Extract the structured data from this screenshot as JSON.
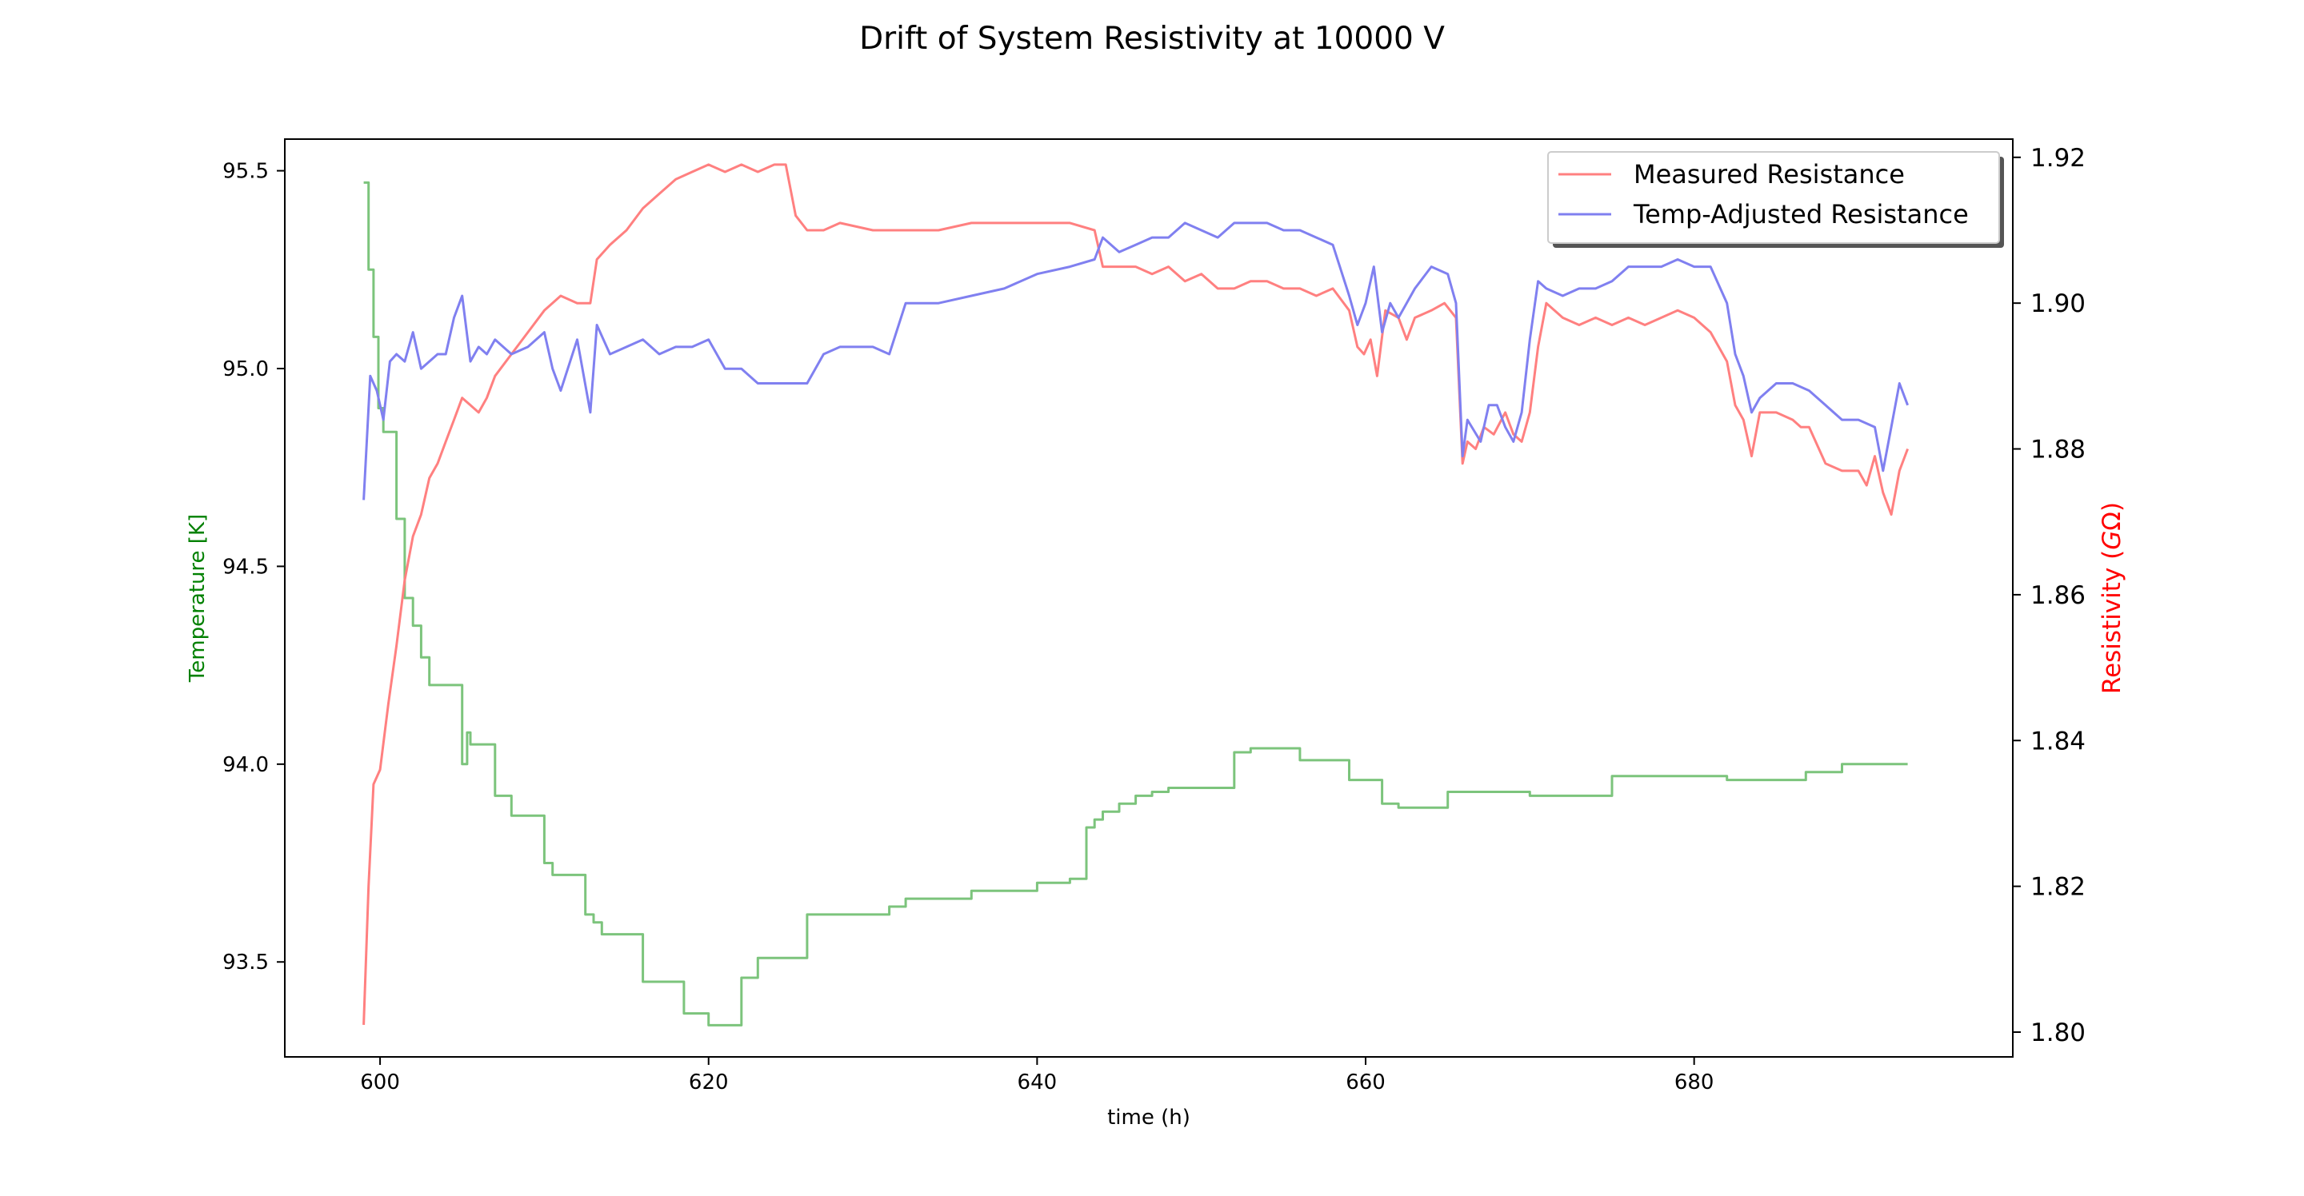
{
  "chart_data": {
    "type": "line",
    "title": "Drift of System Resistivity at 10000 V",
    "xlabel": "time (h)",
    "ylabel_left": "Temperature [K]",
    "ylabel_right": "Resistivity (GΩ)",
    "ylabel_right_prefix": "Resistivity (",
    "ylabel_right_var": "G",
    "ylabel_right_suffix": "Ω)",
    "xlim": [
      594.2,
      699.4
    ],
    "ylim_left": [
      93.26,
      95.58
    ],
    "ylim_right": [
      1.7966,
      1.9225
    ],
    "x_ticks": [
      600,
      620,
      640,
      660,
      680
    ],
    "y_ticks_left": [
      93.5,
      94.0,
      94.5,
      95.0,
      95.5
    ],
    "y_ticks_right": [
      1.8,
      1.82,
      1.84,
      1.86,
      1.88,
      1.9,
      1.92
    ],
    "grid": false,
    "legend_position": "top-right",
    "colors": {
      "temperature": "#7cc47c",
      "measured": "#ff8080",
      "adjusted": "#8080f0",
      "left_label": "#008000",
      "right_label": "#ff0000"
    },
    "legend": [
      {
        "name": "Measured Resistance",
        "color": "#ff8080"
      },
      {
        "name": "Temp-Adjusted Resistance",
        "color": "#8080f0"
      }
    ],
    "series": [
      {
        "name": "Measured Resistance",
        "axis": "right",
        "x": [
          599.0,
          599.3,
          599.6,
          600.0,
          600.5,
          601.0,
          601.5,
          602.0,
          602.5,
          603.0,
          603.5,
          604.0,
          604.5,
          605.0,
          605.5,
          606.0,
          606.5,
          607.0,
          608.0,
          609.0,
          610.0,
          611.0,
          612.0,
          612.8,
          613.2,
          614.0,
          615.0,
          616.0,
          617.0,
          618.0,
          619.0,
          620.0,
          621.0,
          622.0,
          623.0,
          624.0,
          624.7,
          625.3,
          626.0,
          627.0,
          628.0,
          630.0,
          632.0,
          634.0,
          636.0,
          638.0,
          640.0,
          642.0,
          643.5,
          644.0,
          645.0,
          646.0,
          647.0,
          648.0,
          649.0,
          650.0,
          651.0,
          652.0,
          653.0,
          654.0,
          655.0,
          656.0,
          657.0,
          658.0,
          659.0,
          659.5,
          659.9,
          660.3,
          660.7,
          661.2,
          662.0,
          662.5,
          663.0,
          664.0,
          664.8,
          665.5,
          665.9,
          666.2,
          666.7,
          667.2,
          667.8,
          668.5,
          669.0,
          669.5,
          670.0,
          670.5,
          671.0,
          672.0,
          673.0,
          674.0,
          675.0,
          676.0,
          677.0,
          678.0,
          679.0,
          680.0,
          681.0,
          682.0,
          682.5,
          683.0,
          683.5,
          684.0,
          685.0,
          686.0,
          686.5,
          687.0,
          688.0,
          689.0,
          690.0,
          690.5,
          691.0,
          691.5,
          692.0,
          692.5,
          693.0
        ],
        "y": [
          1.801,
          1.82,
          1.834,
          1.836,
          1.845,
          1.853,
          1.862,
          1.868,
          1.871,
          1.876,
          1.878,
          1.881,
          1.884,
          1.887,
          1.886,
          1.885,
          1.887,
          1.89,
          1.893,
          1.896,
          1.899,
          1.901,
          1.9,
          1.9,
          1.906,
          1.908,
          1.91,
          1.913,
          1.915,
          1.917,
          1.918,
          1.919,
          1.918,
          1.919,
          1.918,
          1.919,
          1.919,
          1.912,
          1.91,
          1.91,
          1.911,
          1.91,
          1.91,
          1.91,
          1.911,
          1.911,
          1.911,
          1.911,
          1.91,
          1.905,
          1.905,
          1.905,
          1.904,
          1.905,
          1.903,
          1.904,
          1.902,
          1.902,
          1.903,
          1.903,
          1.902,
          1.902,
          1.901,
          1.902,
          1.899,
          1.894,
          1.893,
          1.895,
          1.89,
          1.899,
          1.898,
          1.895,
          1.898,
          1.899,
          1.9,
          1.898,
          1.878,
          1.881,
          1.88,
          1.883,
          1.882,
          1.885,
          1.882,
          1.881,
          1.885,
          1.894,
          1.9,
          1.898,
          1.897,
          1.898,
          1.897,
          1.898,
          1.897,
          1.898,
          1.899,
          1.898,
          1.896,
          1.892,
          1.886,
          1.884,
          1.879,
          1.885,
          1.885,
          1.884,
          1.883,
          1.883,
          1.878,
          1.877,
          1.877,
          1.875,
          1.879,
          1.874,
          1.871,
          1.877,
          1.88
        ]
      },
      {
        "name": "Temp-Adjusted Resistance",
        "axis": "right",
        "x": [
          599.0,
          599.4,
          599.8,
          600.2,
          600.6,
          601.0,
          601.5,
          602.0,
          602.5,
          603.0,
          603.5,
          604.0,
          604.5,
          605.0,
          605.5,
          606.0,
          606.5,
          607.0,
          608.0,
          609.0,
          610.0,
          610.5,
          611.0,
          612.0,
          612.8,
          613.2,
          614.0,
          615.0,
          616.0,
          617.0,
          618.0,
          619.0,
          620.0,
          621.0,
          622.0,
          623.0,
          624.0,
          625.0,
          626.0,
          627.0,
          628.0,
          630.0,
          631.0,
          632.0,
          634.0,
          636.0,
          638.0,
          640.0,
          642.0,
          643.5,
          644.0,
          645.0,
          646.0,
          647.0,
          648.0,
          649.0,
          650.0,
          651.0,
          652.0,
          653.0,
          654.0,
          655.0,
          656.0,
          657.0,
          658.0,
          659.0,
          659.5,
          660.0,
          660.5,
          661.0,
          661.5,
          662.0,
          663.0,
          664.0,
          665.0,
          665.5,
          665.9,
          666.2,
          667.0,
          667.5,
          668.0,
          668.5,
          669.0,
          669.5,
          670.0,
          670.5,
          671.0,
          672.0,
          673.0,
          674.0,
          675.0,
          676.0,
          677.0,
          678.0,
          679.0,
          680.0,
          681.0,
          682.0,
          682.5,
          683.0,
          683.5,
          684.0,
          685.0,
          686.0,
          687.0,
          688.0,
          689.0,
          690.0,
          691.0,
          691.5,
          692.0,
          692.5,
          693.0
        ],
        "y": [
          1.873,
          1.89,
          1.888,
          1.884,
          1.892,
          1.893,
          1.892,
          1.896,
          1.891,
          1.892,
          1.893,
          1.893,
          1.898,
          1.901,
          1.892,
          1.894,
          1.893,
          1.895,
          1.893,
          1.894,
          1.896,
          1.891,
          1.888,
          1.895,
          1.885,
          1.897,
          1.893,
          1.894,
          1.895,
          1.893,
          1.894,
          1.894,
          1.895,
          1.891,
          1.891,
          1.889,
          1.889,
          1.889,
          1.889,
          1.893,
          1.894,
          1.894,
          1.893,
          1.9,
          1.9,
          1.901,
          1.902,
          1.904,
          1.905,
          1.906,
          1.909,
          1.907,
          1.908,
          1.909,
          1.909,
          1.911,
          1.91,
          1.909,
          1.911,
          1.911,
          1.911,
          1.91,
          1.91,
          1.909,
          1.908,
          1.901,
          1.897,
          1.9,
          1.905,
          1.896,
          1.9,
          1.898,
          1.902,
          1.905,
          1.904,
          1.9,
          1.879,
          1.884,
          1.881,
          1.886,
          1.886,
          1.883,
          1.881,
          1.885,
          1.895,
          1.903,
          1.902,
          1.901,
          1.902,
          1.902,
          1.903,
          1.905,
          1.905,
          1.905,
          1.906,
          1.905,
          1.905,
          1.9,
          1.893,
          1.89,
          1.885,
          1.887,
          1.889,
          1.889,
          1.888,
          1.886,
          1.884,
          1.884,
          1.883,
          1.877,
          1.883,
          1.889,
          1.886
        ]
      },
      {
        "name": "Temperature",
        "axis": "left",
        "x": [
          599.0,
          599.3,
          599.6,
          599.9,
          600.2,
          600.5,
          601.0,
          601.5,
          602.0,
          602.5,
          603.0,
          603.5,
          604.0,
          604.5,
          605.0,
          605.3,
          605.5,
          606.0,
          606.5,
          607.0,
          607.5,
          608.0,
          608.5,
          609.0,
          609.5,
          610.0,
          610.5,
          611.0,
          611.5,
          612.0,
          612.5,
          613.0,
          613.5,
          614.0,
          614.5,
          615.0,
          615.5,
          616.0,
          616.5,
          617.0,
          617.5,
          618.0,
          618.5,
          619.0,
          619.5,
          620.0,
          620.5,
          621.0,
          621.5,
          622.0,
          622.5,
          623.0,
          623.5,
          624.0,
          624.5,
          625.0,
          625.5,
          626.0,
          626.5,
          627.0,
          627.5,
          628.0,
          629.0,
          630.0,
          631.0,
          632.0,
          634.0,
          636.0,
          637.0,
          639.0,
          640.0,
          642.0,
          643.0,
          643.5,
          644.0,
          645.0,
          646.0,
          647.0,
          648.0,
          649.0,
          650.0,
          651.0,
          652.0,
          653.0,
          654.0,
          655.0,
          656.0,
          657.0,
          658.0,
          659.0,
          660.0,
          661.0,
          662.0,
          663.0,
          664.0,
          665.0,
          665.5,
          666.0,
          668.0,
          670.0,
          672.0,
          674.0,
          675.0,
          676.0,
          678.0,
          680.0,
          681.0,
          682.0,
          683.0,
          684.0,
          685.0,
          686.0,
          686.5,
          686.8,
          687.0,
          688.0,
          689.0,
          690.0,
          691.0,
          692.0,
          693.0
        ],
        "y": [
          95.47,
          95.25,
          95.08,
          94.9,
          94.84,
          94.84,
          94.62,
          94.42,
          94.35,
          94.27,
          94.2,
          94.2,
          94.2,
          94.2,
          94.0,
          94.08,
          94.05,
          94.05,
          94.05,
          93.92,
          93.92,
          93.87,
          93.87,
          93.87,
          93.87,
          93.75,
          93.72,
          93.72,
          93.72,
          93.72,
          93.62,
          93.6,
          93.57,
          93.57,
          93.57,
          93.57,
          93.57,
          93.45,
          93.45,
          93.45,
          93.45,
          93.45,
          93.37,
          93.37,
          93.37,
          93.34,
          93.34,
          93.34,
          93.34,
          93.46,
          93.46,
          93.51,
          93.51,
          93.51,
          93.51,
          93.51,
          93.51,
          93.62,
          93.62,
          93.62,
          93.62,
          93.62,
          93.62,
          93.62,
          93.64,
          93.66,
          93.66,
          93.68,
          93.68,
          93.68,
          93.7,
          93.71,
          93.84,
          93.86,
          93.88,
          93.9,
          93.92,
          93.93,
          93.94,
          93.94,
          93.94,
          93.94,
          94.03,
          94.04,
          94.04,
          94.04,
          94.01,
          94.01,
          94.01,
          93.96,
          93.96,
          93.9,
          93.89,
          93.89,
          93.89,
          93.93,
          93.93,
          93.93,
          93.93,
          93.92,
          93.92,
          93.92,
          93.97,
          93.97,
          93.97,
          93.97,
          93.97,
          93.96,
          93.96,
          93.96,
          93.96,
          93.96,
          93.96,
          93.98,
          93.98,
          93.98,
          94.0,
          94.0,
          94.0,
          94.0,
          94.0
        ]
      }
    ]
  }
}
